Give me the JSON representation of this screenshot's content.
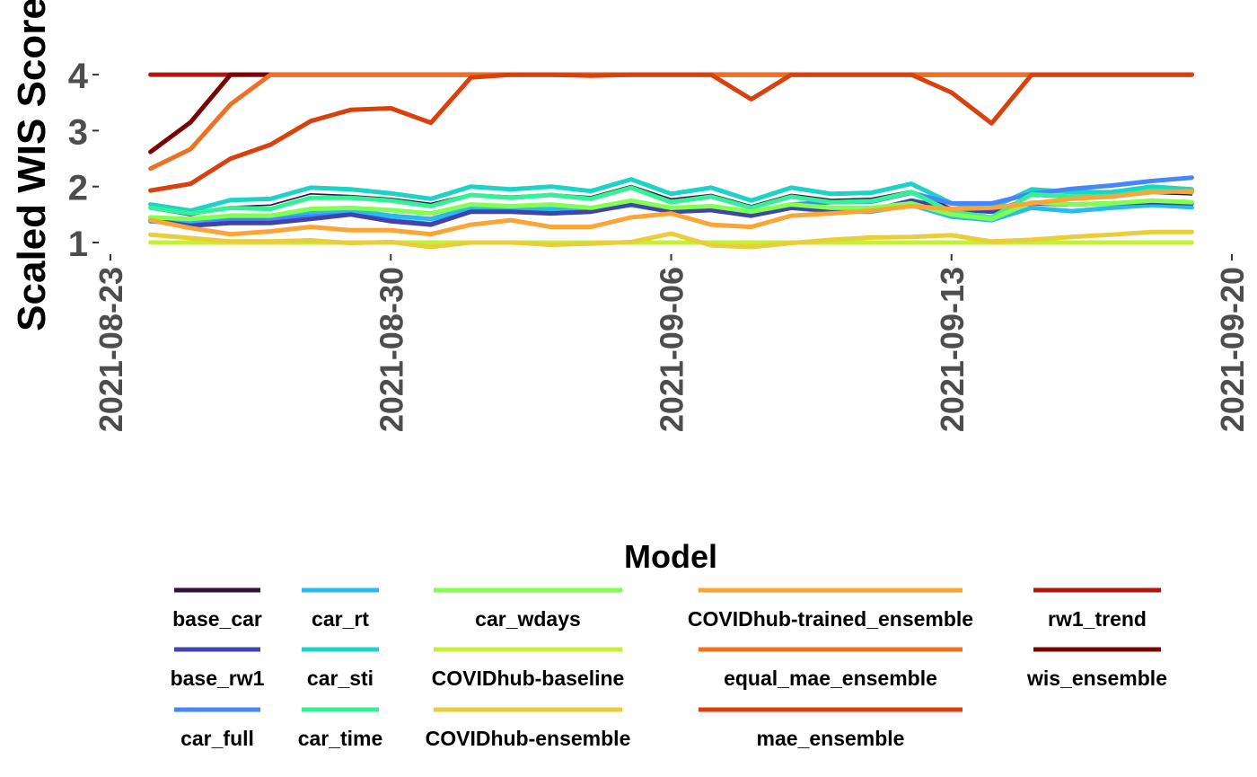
{
  "chart_data": {
    "type": "line",
    "title": "",
    "xlabel": "",
    "ylabel": "Scaled WIS Score",
    "x_ticks": [
      "2021-08-23",
      "2021-08-30",
      "2021-09-06",
      "2021-09-13",
      "2021-09-20"
    ],
    "y_ticks": [
      1,
      2,
      3,
      4
    ],
    "ylim": [
      0.9,
      4.0
    ],
    "grid": false,
    "legend_title": "Model",
    "legend_position": "bottom",
    "x": [
      "2021-08-24",
      "2021-08-25",
      "2021-08-26",
      "2021-08-27",
      "2021-08-28",
      "2021-08-29",
      "2021-08-30",
      "2021-08-31",
      "2021-09-01",
      "2021-09-02",
      "2021-09-03",
      "2021-09-04",
      "2021-09-05",
      "2021-09-06",
      "2021-09-07",
      "2021-09-08",
      "2021-09-09",
      "2021-09-10",
      "2021-09-11",
      "2021-09-12",
      "2021-09-13",
      "2021-09-14",
      "2021-09-15",
      "2021-09-16",
      "2021-09-17",
      "2021-09-18",
      "2021-09-19"
    ],
    "series": [
      {
        "name": "rw1_trend",
        "color": "#B2170F",
        "values": [
          4,
          4,
          4,
          4,
          4,
          4,
          4,
          4,
          4,
          4,
          4,
          4,
          4,
          4,
          4,
          4,
          4,
          4,
          4,
          4,
          4,
          4,
          4,
          4,
          4,
          4,
          4
        ]
      },
      {
        "name": "wis_ensemble",
        "color": "#7A0403",
        "values": [
          2.62,
          3.15,
          4,
          4,
          4,
          4,
          4,
          4,
          4,
          4,
          4,
          4,
          4,
          4,
          4,
          4,
          4,
          4,
          4,
          4,
          4,
          4,
          4,
          4,
          4,
          4,
          4
        ]
      },
      {
        "name": "equal_mae_ensemble",
        "color": "#F07022",
        "values": [
          2.32,
          2.67,
          3.47,
          4,
          4,
          4,
          4,
          4,
          4,
          4,
          4,
          4,
          4,
          4,
          4,
          4,
          4,
          4,
          4,
          4,
          4,
          4,
          4,
          4,
          4,
          4,
          4
        ]
      },
      {
        "name": "mae_ensemble",
        "color": "#DA400B",
        "values": [
          1.93,
          2.05,
          2.5,
          2.75,
          3.17,
          3.37,
          3.4,
          3.14,
          3.95,
          4.0,
          4.0,
          3.98,
          4.0,
          4.0,
          4.0,
          3.56,
          4.0,
          4.0,
          4.0,
          4.0,
          3.68,
          3.13,
          4.0,
          4.0,
          4.0,
          4.0,
          4.0
        ]
      },
      {
        "name": "car_sti",
        "color": "#1BD3C6",
        "values": [
          1.68,
          1.57,
          1.76,
          1.78,
          1.98,
          1.95,
          1.88,
          1.78,
          2.0,
          1.95,
          2.0,
          1.92,
          2.13,
          1.87,
          1.98,
          1.75,
          1.98,
          1.87,
          1.89,
          2.05,
          1.7,
          1.62,
          1.95,
          1.9,
          1.9,
          2.0,
          1.95
        ]
      },
      {
        "name": "base_car",
        "color": "#30123B",
        "values": [
          1.6,
          1.48,
          1.64,
          1.67,
          1.87,
          1.84,
          1.79,
          1.7,
          1.87,
          1.83,
          1.87,
          1.82,
          2.02,
          1.78,
          1.86,
          1.66,
          1.86,
          1.77,
          1.79,
          1.93,
          1.62,
          1.56,
          1.83,
          1.8,
          1.8,
          1.88,
          1.85
        ]
      },
      {
        "name": "car_full",
        "color": "#4686FB",
        "values": [
          1.38,
          1.33,
          1.41,
          1.41,
          1.47,
          1.52,
          1.4,
          1.33,
          1.56,
          1.57,
          1.52,
          1.57,
          1.7,
          1.58,
          1.62,
          1.52,
          1.68,
          1.72,
          1.73,
          1.89,
          1.7,
          1.7,
          1.87,
          1.96,
          2.02,
          2.1,
          2.16
        ]
      },
      {
        "name": "car_rt",
        "color": "#28BBEC",
        "values": [
          1.45,
          1.38,
          1.48,
          1.48,
          1.55,
          1.58,
          1.48,
          1.42,
          1.62,
          1.58,
          1.6,
          1.56,
          1.67,
          1.55,
          1.58,
          1.48,
          1.62,
          1.55,
          1.55,
          1.67,
          1.46,
          1.4,
          1.62,
          1.56,
          1.62,
          1.67,
          1.63
        ]
      },
      {
        "name": "base_rw1",
        "color": "#4145AB",
        "values": [
          1.4,
          1.3,
          1.35,
          1.35,
          1.42,
          1.5,
          1.38,
          1.32,
          1.55,
          1.55,
          1.52,
          1.55,
          1.68,
          1.55,
          1.58,
          1.48,
          1.62,
          1.58,
          1.58,
          1.75,
          1.6,
          1.55,
          1.7,
          1.68,
          1.7,
          1.72,
          1.7
        ]
      },
      {
        "name": "car_time",
        "color": "#32F197",
        "values": [
          1.62,
          1.52,
          1.62,
          1.6,
          1.8,
          1.8,
          1.75,
          1.65,
          1.85,
          1.8,
          1.85,
          1.78,
          1.98,
          1.72,
          1.82,
          1.62,
          1.82,
          1.72,
          1.74,
          1.9,
          1.55,
          1.45,
          1.86,
          1.82,
          1.83,
          1.93,
          1.9
        ]
      },
      {
        "name": "car_wdays",
        "color": "#83FF52",
        "values": [
          1.45,
          1.42,
          1.48,
          1.48,
          1.6,
          1.62,
          1.58,
          1.52,
          1.68,
          1.65,
          1.68,
          1.62,
          1.75,
          1.62,
          1.65,
          1.55,
          1.68,
          1.62,
          1.62,
          1.7,
          1.5,
          1.42,
          1.72,
          1.68,
          1.7,
          1.75,
          1.72
        ]
      },
      {
        "name": "COVIDhub-baseline",
        "color": "#C4F134",
        "values": [
          1,
          1,
          1,
          1,
          1,
          1,
          1,
          1,
          1,
          1,
          1,
          1,
          1,
          1,
          1,
          1,
          1,
          1,
          1,
          1,
          1,
          1,
          1,
          1,
          1,
          1,
          1
        ]
      },
      {
        "name": "COVIDhub-ensemble",
        "color": "#E8CE3A",
        "values": [
          1.14,
          1.08,
          1.02,
          1.02,
          1.04,
          0.99,
          1.01,
          0.92,
          1.0,
          1.0,
          0.96,
          0.98,
          1.01,
          1.16,
          0.95,
          0.92,
          0.99,
          1.05,
          1.09,
          1.1,
          1.13,
          1.02,
          1.05,
          1.1,
          1.14,
          1.19,
          1.19
        ]
      },
      {
        "name": "COVIDhub-trained_ensemble",
        "color": "#FAA535",
        "values": [
          1.4,
          1.26,
          1.15,
          1.2,
          1.28,
          1.22,
          1.22,
          1.15,
          1.32,
          1.4,
          1.28,
          1.28,
          1.45,
          1.52,
          1.32,
          1.28,
          1.48,
          1.52,
          1.57,
          1.65,
          1.6,
          1.62,
          1.7,
          1.78,
          1.82,
          1.9,
          1.92
        ]
      }
    ],
    "legend": [
      [
        "base_car",
        "base_rw1",
        "car_full"
      ],
      [
        "car_rt",
        "car_sti",
        "car_time"
      ],
      [
        "car_wdays",
        "COVIDhub-baseline",
        "COVIDhub-ensemble"
      ],
      [
        "COVIDhub-trained_ensemble",
        "equal_mae_ensemble",
        "mae_ensemble"
      ],
      [
        "rw1_trend",
        "wis_ensemble"
      ]
    ]
  }
}
